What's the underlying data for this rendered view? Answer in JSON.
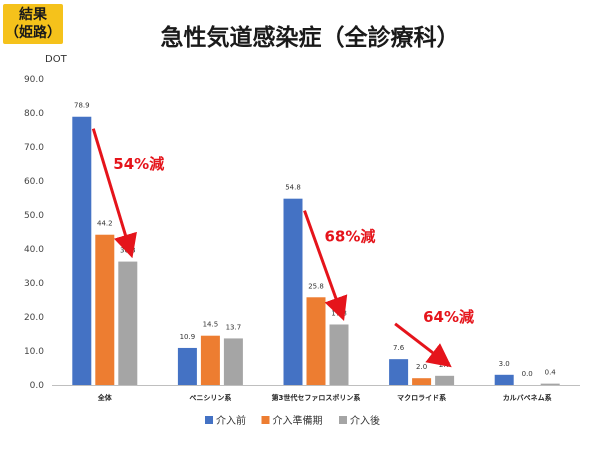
{
  "badge": {
    "line1": "結果",
    "line2": "（姫路）"
  },
  "title": "急性気道感染症（全診療科）",
  "chart_data": {
    "type": "bar",
    "ylabel": "DOT",
    "ylim": [
      0,
      90
    ],
    "yticks": [
      "0.0",
      "10.0",
      "20.0",
      "30.0",
      "40.0",
      "50.0",
      "60.0",
      "70.0",
      "80.0",
      "90.0"
    ],
    "categories": [
      "全体",
      "ペニシリン系",
      "第3世代セファロスポリン系",
      "マクロライド系",
      "カルバペネム系"
    ],
    "series": [
      {
        "name": "介入前",
        "color": "#4472c4",
        "values": [
          78.9,
          10.9,
          54.8,
          7.6,
          3.0
        ]
      },
      {
        "name": "介入準備期",
        "color": "#ed7d31",
        "values": [
          44.2,
          14.5,
          25.8,
          2.0,
          0.0
        ]
      },
      {
        "name": "介入後",
        "color": "#a5a5a5",
        "values": [
          36.3,
          13.7,
          17.8,
          2.7,
          0.4
        ]
      }
    ],
    "data_labels": [
      [
        "78.9",
        "10.9",
        "54.8",
        "7.6",
        "3.0"
      ],
      [
        "44.2",
        "14.5",
        "25.8",
        "2.0",
        "0.0"
      ],
      [
        "36.3",
        "13.7",
        "17.8",
        "2.7",
        "0.4"
      ]
    ],
    "annotations": [
      {
        "text": "54%減",
        "category": 0
      },
      {
        "text": "68%減",
        "category": 2
      },
      {
        "text": "64%減",
        "category": 3
      }
    ],
    "legend_position": "bottom",
    "grid": false
  }
}
